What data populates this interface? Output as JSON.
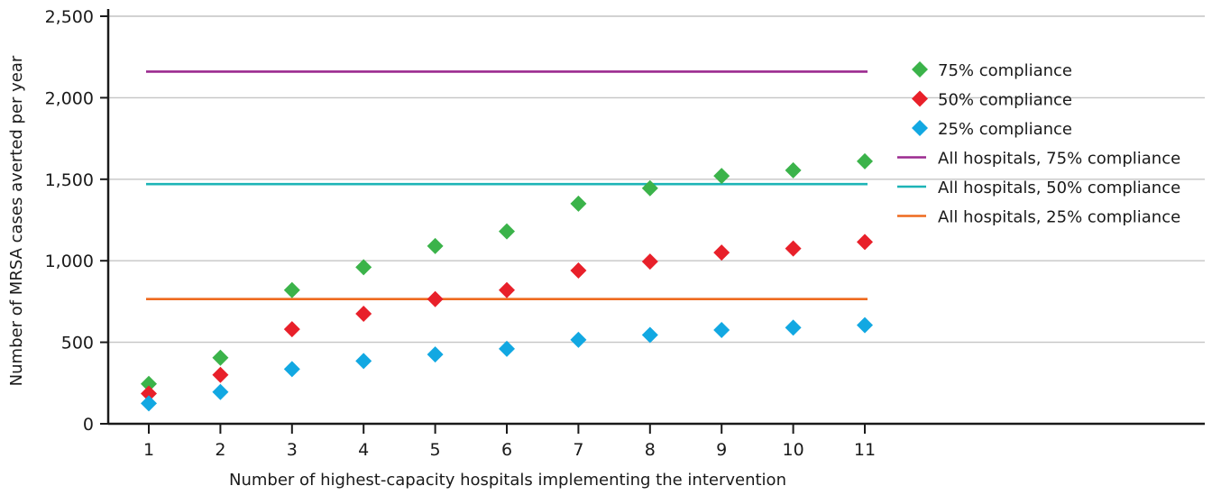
{
  "chart_data": {
    "type": "scatter",
    "title": "",
    "xlabel": "Number of highest-capacity hospitals implementing the intervention",
    "ylabel": "Number of MRSA cases averted per year",
    "x": [
      1,
      2,
      3,
      4,
      5,
      6,
      7,
      8,
      9,
      10,
      11
    ],
    "xlim": [
      0.4,
      11.4
    ],
    "ylim": [
      0,
      2500
    ],
    "yticks": [
      0,
      500,
      1000,
      1500,
      2000,
      2500
    ],
    "ytick_labels": [
      "0",
      "500",
      "1,000",
      "1,500",
      "2,000",
      "2,500"
    ],
    "xtick_labels": [
      "1",
      "2",
      "3",
      "4",
      "5",
      "6",
      "7",
      "8",
      "9",
      "10",
      "11"
    ],
    "grid": true,
    "legend_position": "right",
    "series": [
      {
        "name": "75% compliance",
        "color": "#3bb34a",
        "marker": "diamond",
        "values": [
          245,
          405,
          820,
          960,
          1090,
          1180,
          1350,
          1445,
          1520,
          1555,
          1610
        ]
      },
      {
        "name": "50% compliance",
        "color": "#e8202a",
        "marker": "diamond",
        "values": [
          185,
          300,
          580,
          675,
          765,
          820,
          940,
          995,
          1050,
          1075,
          1115
        ]
      },
      {
        "name": "25% compliance",
        "color": "#12a8e2",
        "marker": "diamond",
        "values": [
          125,
          195,
          335,
          385,
          425,
          460,
          515,
          545,
          575,
          590,
          605
        ]
      }
    ],
    "reference_lines": [
      {
        "name": "All hospitals, 75% compliance",
        "color": "#9b2a8f",
        "value": 2160
      },
      {
        "name": "All hospitals, 50% compliance",
        "color": "#1db4b6",
        "value": 1470
      },
      {
        "name": "All hospitals, 25% compliance",
        "color": "#ee6a1f",
        "value": 765
      }
    ]
  }
}
